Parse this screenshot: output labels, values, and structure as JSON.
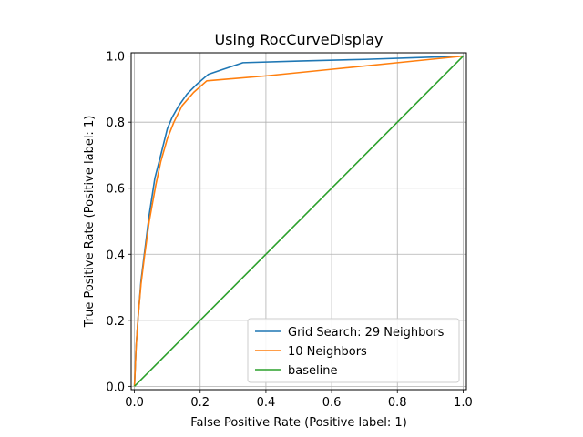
{
  "chart_data": {
    "type": "line",
    "title": "Using RocCurveDisplay",
    "xlabel": "False Positive Rate (Positive label: 1)",
    "ylabel": "True Positive Rate (Positive label: 1)",
    "xlim": [
      -0.01,
      1.01
    ],
    "ylim": [
      -0.01,
      1.01
    ],
    "xticks": [
      0.0,
      0.2,
      0.4,
      0.6,
      0.8,
      1.0
    ],
    "yticks": [
      0.0,
      0.2,
      0.4,
      0.6,
      0.8,
      1.0
    ],
    "grid": true,
    "legend_position": "lower-right",
    "series": [
      {
        "name": "Grid Search: 29 Neighbors",
        "color": "#1f77b4",
        "x": [
          0.0,
          0.005,
          0.012,
          0.02,
          0.03,
          0.045,
          0.062,
          0.08,
          0.1,
          0.115,
          0.135,
          0.16,
          0.19,
          0.225,
          0.27,
          0.33,
          0.5,
          0.7,
          0.85,
          1.0
        ],
        "y": [
          0.0,
          0.12,
          0.22,
          0.32,
          0.4,
          0.52,
          0.63,
          0.7,
          0.78,
          0.815,
          0.85,
          0.885,
          0.915,
          0.945,
          0.96,
          0.98,
          0.985,
          0.99,
          0.995,
          1.0
        ]
      },
      {
        "name": "10 Neighbors",
        "color": "#ff7f0e",
        "x": [
          0.0,
          0.005,
          0.012,
          0.02,
          0.03,
          0.045,
          0.065,
          0.08,
          0.1,
          0.12,
          0.145,
          0.18,
          0.22,
          0.4,
          0.6,
          0.8,
          1.0
        ],
        "y": [
          0.0,
          0.12,
          0.22,
          0.31,
          0.39,
          0.5,
          0.61,
          0.68,
          0.75,
          0.8,
          0.85,
          0.89,
          0.925,
          0.94,
          0.96,
          0.98,
          1.0
        ]
      },
      {
        "name": "baseline",
        "color": "#2ca02c",
        "x": [
          0.0,
          1.0
        ],
        "y": [
          0.0,
          1.0
        ]
      }
    ]
  }
}
